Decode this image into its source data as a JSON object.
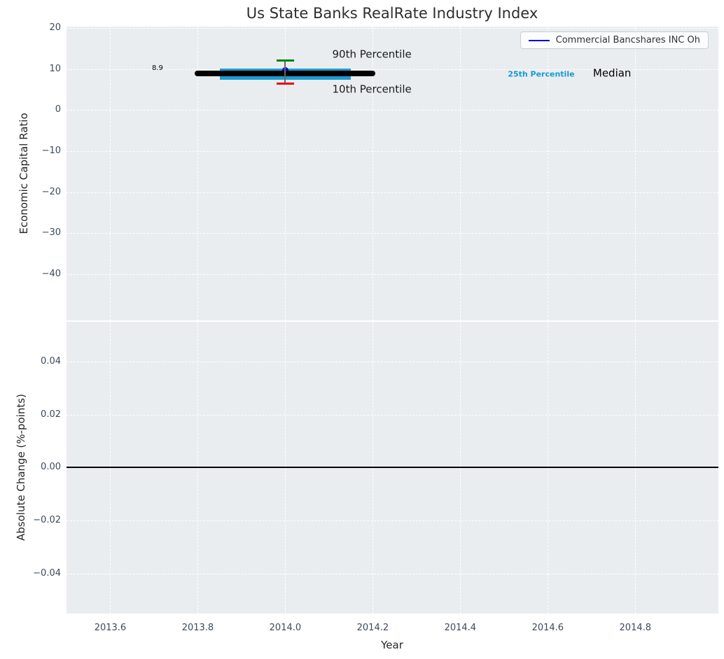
{
  "colors": {
    "axes_background": "#e9edf0",
    "grid": "#ffffff",
    "tick_label": "#3b4a5a",
    "median": "#000000",
    "percentile_band": "#1b9cd4",
    "company": "#0000d0",
    "cap_90th": "#008000",
    "cap_10th": "#ee0000"
  },
  "chart_data": [
    {
      "type": "line",
      "title": "Us State Banks RealRate Industry Index",
      "ylabel": "Economic Capital Ratio",
      "xlim": [
        2013.5,
        2014.99
      ],
      "ylim": [
        -51.2,
        20.3
      ],
      "grid": true,
      "show_x_tick_labels": false,
      "x_ticks": [
        {
          "value": 2013.6,
          "label": "2013.6"
        },
        {
          "value": 2013.8,
          "label": "2013.8"
        },
        {
          "value": 2014.0,
          "label": "2014.0"
        },
        {
          "value": 2014.2,
          "label": "2014.2"
        },
        {
          "value": 2014.4,
          "label": "2014.4"
        },
        {
          "value": 2014.6,
          "label": "2014.6"
        },
        {
          "value": 2014.8,
          "label": "2014.8"
        }
      ],
      "y_ticks": [
        {
          "value": 20,
          "label": "20"
        },
        {
          "value": 10,
          "label": "10"
        },
        {
          "value": 0,
          "label": "0"
        },
        {
          "value": -10,
          "label": "−10"
        },
        {
          "value": -20,
          "label": "−20"
        },
        {
          "value": -30,
          "label": "−30"
        },
        {
          "value": -40,
          "label": "−40"
        }
      ],
      "legend": {
        "position": "upper right",
        "entries": [
          {
            "label": "Commercial Bancshares INC Oh",
            "color": "#0000d0"
          }
        ]
      },
      "series": [
        {
          "name": "percentile-25-band",
          "type": "line",
          "color": "#1b9cd4",
          "linewidth": 16,
          "capstyle": "butt",
          "x": [
            2013.85,
            2014.15
          ],
          "y_value": 8.8
        },
        {
          "name": "company-point",
          "type": "marker",
          "color": "#0000d0",
          "size": 9,
          "x": 2014.0,
          "y_value": 9.6
        },
        {
          "name": "median-line",
          "type": "line",
          "color": "#000000",
          "linewidth": 8,
          "capstyle": "round",
          "x": [
            2013.8,
            2014.2
          ],
          "y_value": 8.9
        },
        {
          "name": "percentile-range-errorbar",
          "type": "errorbar",
          "x": 2014.0,
          "y_top": 12.0,
          "y_bottom": 6.4,
          "cap_width": 25,
          "top_cap_color": "#008000",
          "bottom_cap_color": "#ee0000",
          "line_color": "#666666"
        }
      ],
      "annotations": [
        {
          "text": "8.9",
          "x": 2013.708,
          "y": 10.1,
          "color": "#000000",
          "size": 10,
          "bold": false
        },
        {
          "text": "90th Percentile",
          "x": 2014.198,
          "y": 13.5,
          "color": "#1a1a1a",
          "size": 15,
          "bold": false
        },
        {
          "text": "10th Percentile",
          "x": 2014.198,
          "y": 5.0,
          "color": "#1a1a1a",
          "size": 15,
          "bold": false
        },
        {
          "text": "25th Percentile",
          "x": 2014.585,
          "y": 8.7,
          "color": "#1799d1",
          "size": 11,
          "bold": true
        },
        {
          "text": "Median",
          "x": 2014.747,
          "y": 8.9,
          "color": "#000000",
          "size": 15,
          "bold": false
        }
      ]
    },
    {
      "type": "line",
      "ylabel": "Absolute Change (%-points)",
      "xlabel": "Year",
      "xlim": [
        2013.5,
        2014.99
      ],
      "ylim": [
        -0.0552,
        0.0551
      ],
      "grid": true,
      "show_x_tick_labels": true,
      "x_ticks": [
        {
          "value": 2013.6,
          "label": "2013.6"
        },
        {
          "value": 2013.8,
          "label": "2013.8"
        },
        {
          "value": 2014.0,
          "label": "2014.0"
        },
        {
          "value": 2014.2,
          "label": "2014.2"
        },
        {
          "value": 2014.4,
          "label": "2014.4"
        },
        {
          "value": 2014.6,
          "label": "2014.6"
        },
        {
          "value": 2014.8,
          "label": "2014.8"
        }
      ],
      "y_ticks": [
        {
          "value": 0.04,
          "label": "0.04"
        },
        {
          "value": 0.02,
          "label": "0.02"
        },
        {
          "value": 0.0,
          "label": "0.00"
        },
        {
          "value": -0.02,
          "label": "−0.02"
        },
        {
          "value": -0.04,
          "label": "−0.04"
        }
      ],
      "series": [
        {
          "name": "zero-line",
          "type": "hline",
          "y_value": 0,
          "color": "#000000",
          "linewidth": 2
        }
      ],
      "annotations": []
    }
  ]
}
